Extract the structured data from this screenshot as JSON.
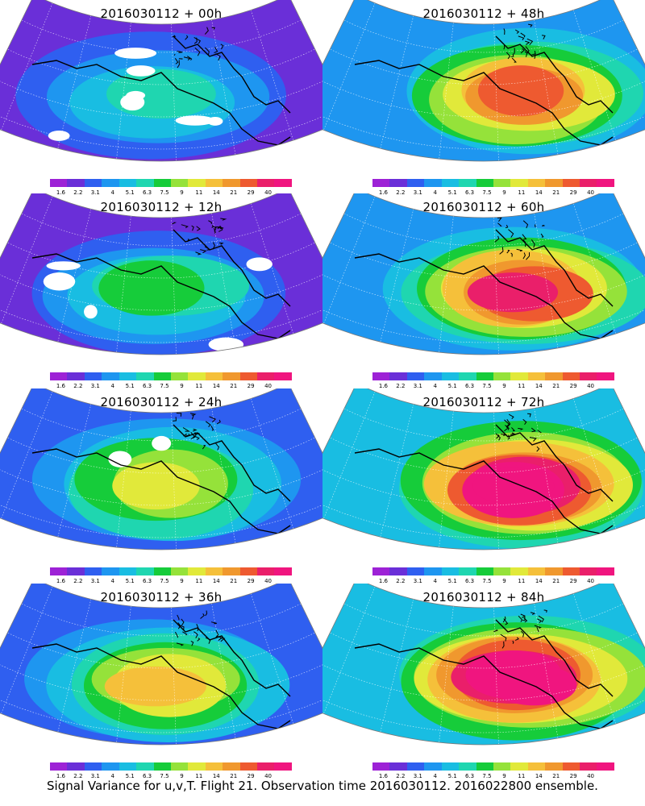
{
  "footer": "Signal Variance for u,v,T. Flight 21. Observation time 2016030112. 2016022800 ensemble.",
  "legend": {
    "labels": [
      "1.6",
      "2.2",
      "3.1",
      "4",
      "5.1",
      "6.3",
      "7.5",
      "9",
      "11",
      "14",
      "21",
      "29",
      "40"
    ],
    "colors": [
      "#9d22d6",
      "#6a2fd8",
      "#2f5ff0",
      "#1e96f0",
      "#19bde2",
      "#1fd6b0",
      "#16cc3a",
      "#95e23a",
      "#e1e93a",
      "#f5c03a",
      "#f0982e",
      "#ee5a30",
      "#ea1f6a",
      "#f0157f"
    ]
  },
  "panels": [
    {
      "title": "2016030112 + 00h",
      "intensity": 0.15
    },
    {
      "title": "2016030112 + 48h",
      "intensity": 0.55
    },
    {
      "title": "2016030112 + 12h",
      "intensity": 0.25
    },
    {
      "title": "2016030112 + 60h",
      "intensity": 0.65
    },
    {
      "title": "2016030112 + 24h",
      "intensity": 0.35
    },
    {
      "title": "2016030112 + 72h",
      "intensity": 0.75
    },
    {
      "title": "2016030112 + 36h",
      "intensity": 0.45
    },
    {
      "title": "2016030112 + 84h",
      "intensity": 0.8
    }
  ]
}
